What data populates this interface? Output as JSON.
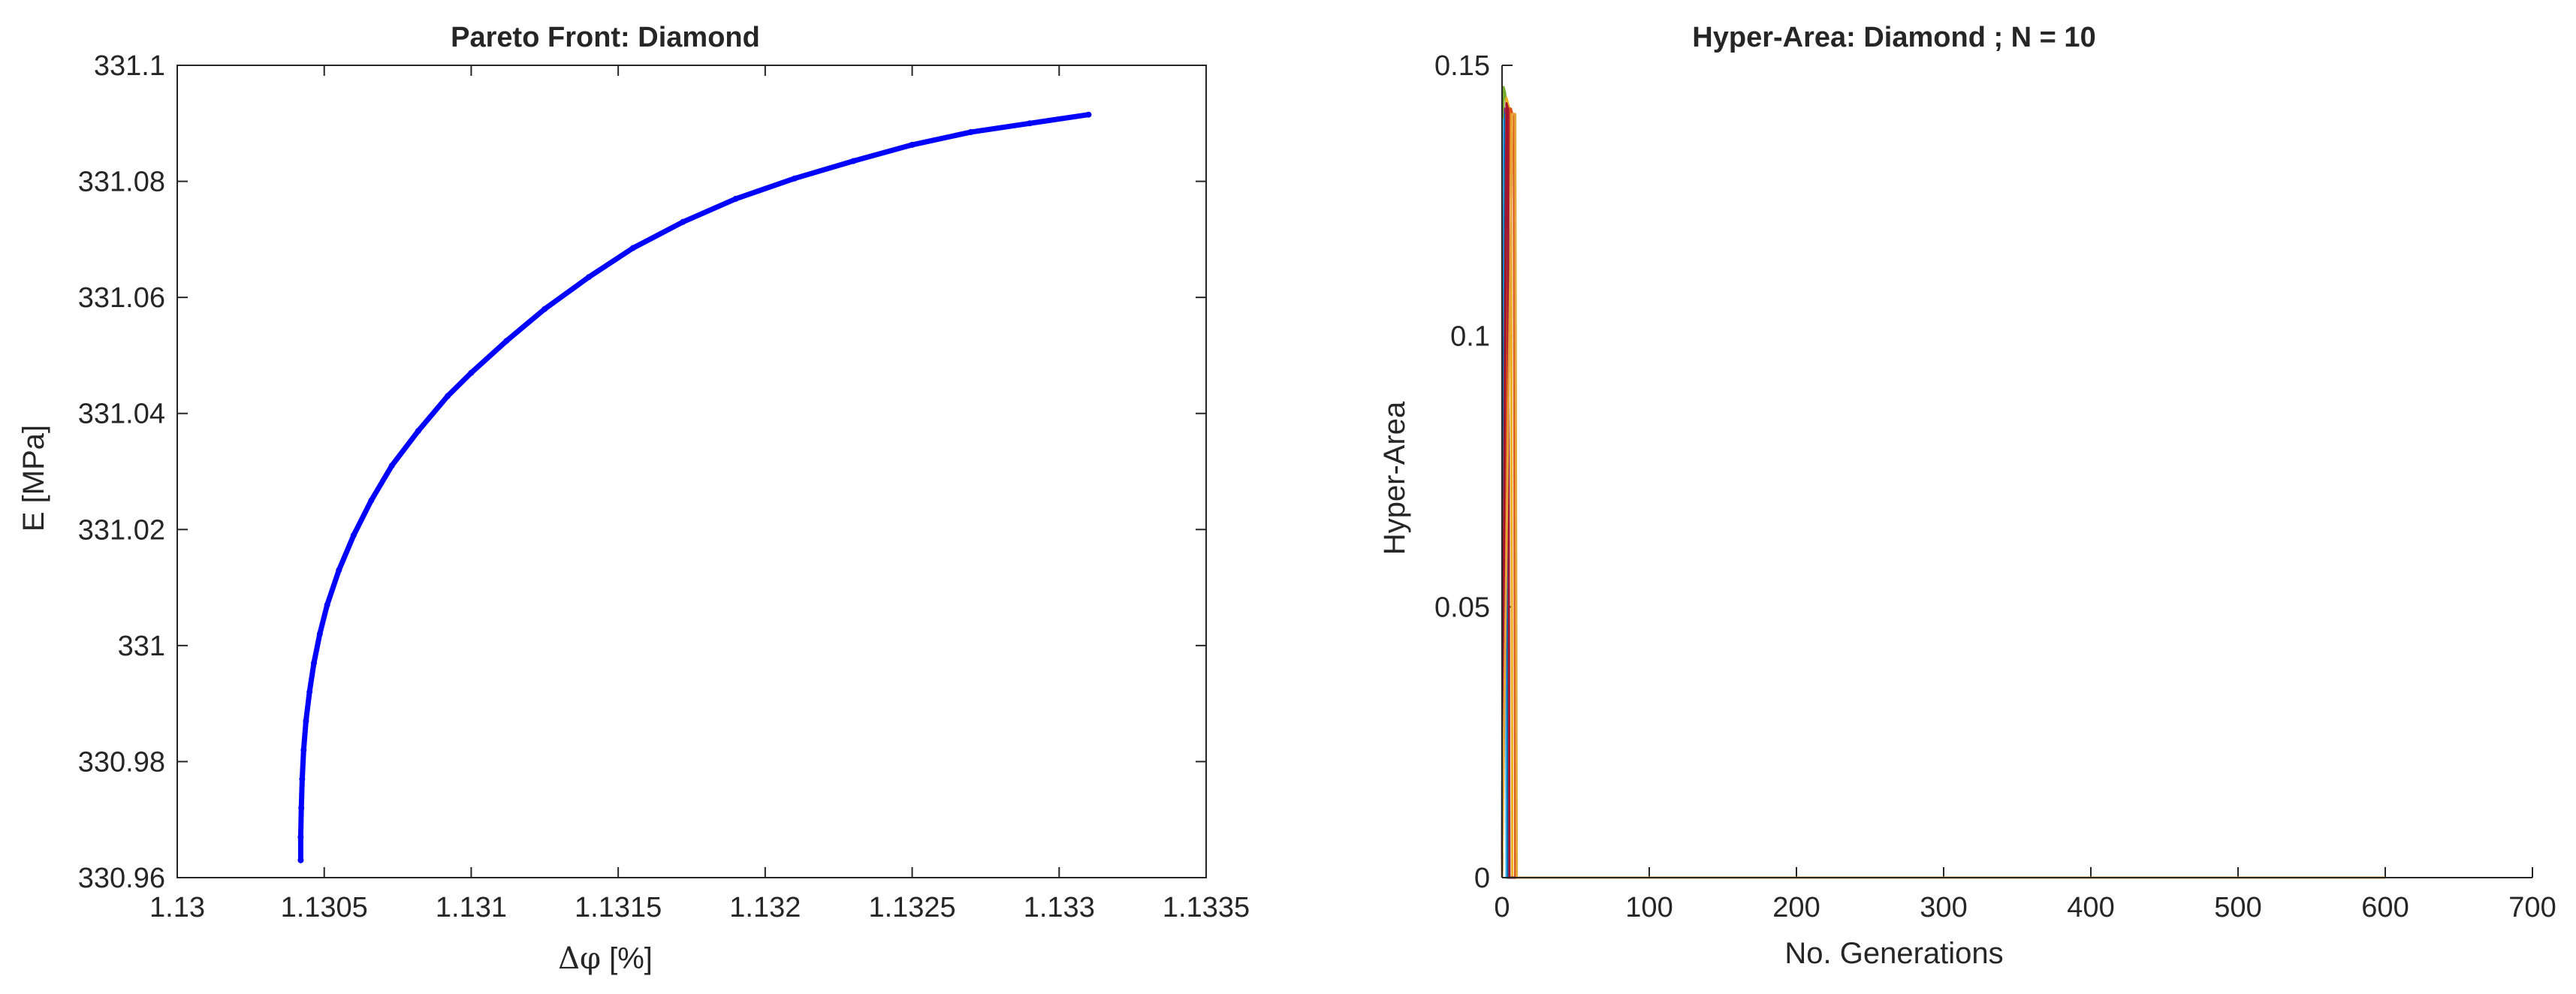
{
  "chart_data": [
    {
      "type": "scatter",
      "title": "Pareto Front:  Diamond",
      "xlabel_symbol": "Δφ",
      "xlabel_unit": " [%]",
      "ylabel": "E [MPa]",
      "xlim": [
        1.13,
        1.1335
      ],
      "ylim": [
        330.96,
        331.1
      ],
      "xticks": [
        1.13,
        1.1305,
        1.131,
        1.1315,
        1.132,
        1.1325,
        1.133,
        1.1335
      ],
      "xtick_labels": [
        "1.13",
        "1.1305",
        "1.131",
        "1.1315",
        "1.132",
        "1.1325",
        "1.133",
        "1.1335"
      ],
      "yticks": [
        330.96,
        330.98,
        331,
        331.02,
        331.04,
        331.06,
        331.08,
        331.1
      ],
      "ytick_labels": [
        "330.96",
        "330.98",
        "331",
        "331.02",
        "331.04",
        "331.06",
        "331.08",
        "331.1"
      ],
      "grid": false,
      "color": "#0000ff",
      "x": [
        1.13042,
        1.13042,
        1.130422,
        1.130425,
        1.13043,
        1.130438,
        1.13045,
        1.130465,
        1.130485,
        1.13051,
        1.13055,
        1.1306,
        1.13066,
        1.13073,
        1.13082,
        1.13092,
        1.131,
        1.13112,
        1.13125,
        1.1314,
        1.13155,
        1.13172,
        1.1319,
        1.1321,
        1.1323,
        1.1325,
        1.1327,
        1.1329,
        1.1331
      ],
      "y": [
        330.963,
        330.967,
        330.972,
        330.977,
        330.982,
        330.987,
        330.992,
        330.997,
        331.002,
        331.007,
        331.013,
        331.019,
        331.025,
        331.031,
        331.037,
        331.043,
        331.047,
        331.0525,
        331.058,
        331.0635,
        331.0685,
        331.073,
        331.077,
        331.0805,
        331.0835,
        331.0863,
        331.0885,
        331.09,
        331.0915
      ]
    },
    {
      "type": "line",
      "title": "Hyper-Area:  Diamond ; N = 10",
      "xlabel": "No. Generations",
      "ylabel": "Hyper-Area",
      "xlim": [
        0,
        700
      ],
      "ylim": [
        0,
        0.15
      ],
      "xticks": [
        0,
        100,
        200,
        300,
        400,
        500,
        600,
        700
      ],
      "xtick_labels": [
        "0",
        "100",
        "200",
        "300",
        "400",
        "500",
        "600",
        "700"
      ],
      "yticks": [
        0,
        0.05,
        0.1,
        0.15
      ],
      "ytick_labels": [
        "0",
        "0.05",
        "0.1",
        "0.15"
      ],
      "grid": false,
      "series": [
        {
          "color": "#77ac30",
          "x": [
            0,
            1,
            2,
            3,
            4,
            5,
            600
          ],
          "y": [
            0,
            0.146,
            0.145,
            0.143,
            0.141,
            0,
            0
          ]
        },
        {
          "color": "#4dbeee",
          "x": [
            0,
            1,
            2,
            3,
            600
          ],
          "y": [
            0,
            0.14,
            0.138,
            0,
            0
          ]
        },
        {
          "color": "#7e2f8e",
          "x": [
            0,
            2,
            3,
            4,
            600
          ],
          "y": [
            0,
            0.142,
            0.14,
            0,
            0
          ]
        },
        {
          "color": "#0072bd",
          "x": [
            0,
            2,
            3,
            4,
            600
          ],
          "y": [
            0,
            0.141,
            0.14,
            0,
            0
          ]
        },
        {
          "color": "#edb120",
          "x": [
            0,
            3,
            4,
            5,
            6,
            7,
            600
          ],
          "y": [
            0,
            0.144,
            0.143,
            0.142,
            0.141,
            0,
            0
          ]
        },
        {
          "color": "#d95319",
          "x": [
            0,
            5,
            6,
            7,
            8,
            9,
            600
          ],
          "y": [
            0,
            0.142,
            0.142,
            0.141,
            0.141,
            0,
            0
          ]
        },
        {
          "color": "#a2142f",
          "x": [
            0,
            3,
            4,
            5,
            600
          ],
          "y": [
            0,
            0.143,
            0.142,
            0,
            0
          ]
        },
        {
          "color": "#e6a43b",
          "x": [
            0,
            7,
            8,
            9,
            10,
            600
          ],
          "y": [
            0,
            0.141,
            0.141,
            0.141,
            0,
            0
          ]
        }
      ]
    }
  ]
}
